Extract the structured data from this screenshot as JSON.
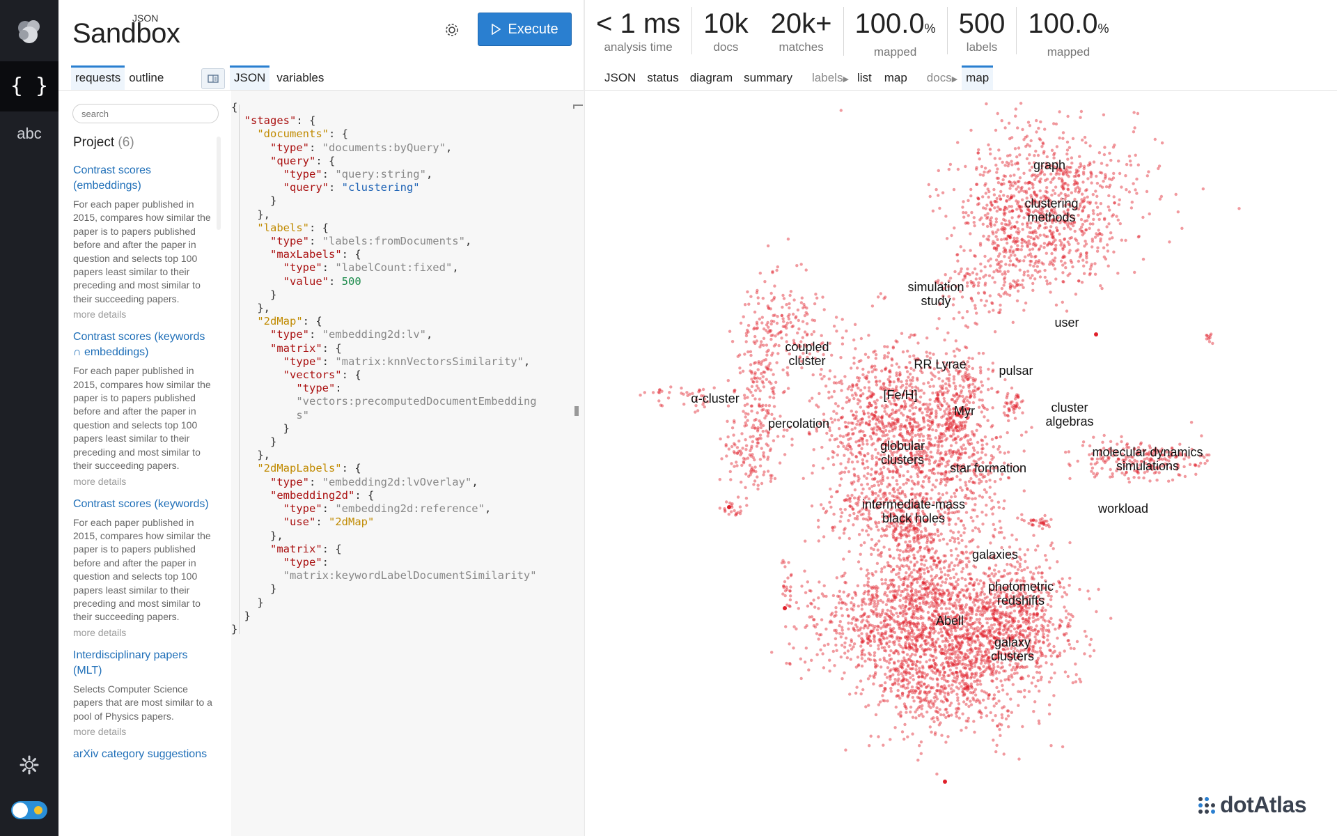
{
  "brand": {
    "json_label": "JSON",
    "name": "Sandbox"
  },
  "toolbar": {
    "execute_label": "Execute"
  },
  "stats": [
    {
      "value": "< 1 ms",
      "unit": "",
      "label": "analysis time"
    },
    {
      "value": "10k",
      "unit": "",
      "label": "docs"
    },
    {
      "value": "20k+",
      "unit": "",
      "label": "matches"
    },
    {
      "value": "100.0",
      "unit": "%",
      "label": "mapped"
    },
    {
      "value": "500",
      "unit": "",
      "label": "labels"
    },
    {
      "value": "100.0",
      "unit": "%",
      "label": "mapped"
    }
  ],
  "left_tabs": [
    "requests",
    "outline"
  ],
  "editor_tabs": [
    "JSON",
    "variables"
  ],
  "result_tabs": {
    "main": [
      "JSON",
      "status",
      "diagram",
      "summary"
    ],
    "labels_group": "labels",
    "labels_items": [
      "list",
      "map"
    ],
    "docs_group": "docs",
    "docs_items": [
      "map"
    ]
  },
  "rail": {
    "abc": "abc",
    "json": "{ }"
  },
  "search": {
    "placeholder": "search"
  },
  "project": {
    "title": "Project",
    "count": "(6)"
  },
  "requests": [
    {
      "title": "Contrast scores (embeddings)",
      "desc": "For each paper published in 2015, compares how similar the paper is to papers published before and after the paper in question and selects top 100 papers least similar to their preceding and most similar to their succeeding papers.",
      "more": "more details"
    },
    {
      "title": "Contrast scores (keywords ∩ embeddings)",
      "desc": "For each paper published in 2015, compares how similar the paper is to papers published before and after the paper in question and selects top 100 papers least similar to their preceding and most similar to their succeeding papers.",
      "more": "more details"
    },
    {
      "title": "Contrast scores (keywords)",
      "desc": "For each paper published in 2015, compares how similar the paper is to papers published before and after the paper in question and selects top 100 papers least similar to their preceding and most similar to their succeeding papers.",
      "more": "more details"
    },
    {
      "title": "Interdisciplinary papers (MLT)",
      "desc": "Selects Computer Science papers that are most similar to a pool of Physics papers.",
      "more": "more details"
    },
    {
      "title": "arXiv category suggestions",
      "desc": "",
      "more": ""
    }
  ],
  "editor": {
    "lines": [
      [
        [
          "p",
          "{"
        ]
      ],
      [
        [
          "p",
          "  "
        ],
        [
          "k",
          "\"stages\""
        ],
        [
          "p",
          ": {"
        ]
      ],
      [
        [
          "p",
          "    "
        ],
        [
          "o",
          "\"documents\""
        ],
        [
          "p",
          ": {"
        ]
      ],
      [
        [
          "p",
          "      "
        ],
        [
          "k",
          "\"type\""
        ],
        [
          "p",
          ": "
        ],
        [
          "s",
          "\"documents:byQuery\""
        ],
        [
          "p",
          ","
        ]
      ],
      [
        [
          "p",
          "      "
        ],
        [
          "k",
          "\"query\""
        ],
        [
          "p",
          ": {"
        ]
      ],
      [
        [
          "p",
          "        "
        ],
        [
          "k",
          "\"type\""
        ],
        [
          "p",
          ": "
        ],
        [
          "s",
          "\"query:string\""
        ],
        [
          "p",
          ","
        ]
      ],
      [
        [
          "p",
          "        "
        ],
        [
          "k",
          "\"query\""
        ],
        [
          "p",
          ": "
        ],
        [
          "v",
          "\"clustering\""
        ]
      ],
      [
        [
          "p",
          "      }"
        ]
      ],
      [
        [
          "p",
          "    },"
        ]
      ],
      [
        [
          "p",
          "    "
        ],
        [
          "o",
          "\"labels\""
        ],
        [
          "p",
          ": {"
        ]
      ],
      [
        [
          "p",
          "      "
        ],
        [
          "k",
          "\"type\""
        ],
        [
          "p",
          ": "
        ],
        [
          "s",
          "\"labels:fromDocuments\""
        ],
        [
          "p",
          ","
        ]
      ],
      [
        [
          "p",
          "      "
        ],
        [
          "k",
          "\"maxLabels\""
        ],
        [
          "p",
          ": {"
        ]
      ],
      [
        [
          "p",
          "        "
        ],
        [
          "k",
          "\"type\""
        ],
        [
          "p",
          ": "
        ],
        [
          "s",
          "\"labelCount:fixed\""
        ],
        [
          "p",
          ","
        ]
      ],
      [
        [
          "p",
          "        "
        ],
        [
          "k",
          "\"value\""
        ],
        [
          "p",
          ": "
        ],
        [
          "n",
          "500"
        ]
      ],
      [
        [
          "p",
          "      }"
        ]
      ],
      [
        [
          "p",
          "    },"
        ]
      ],
      [
        [
          "p",
          "    "
        ],
        [
          "o",
          "\"2dMap\""
        ],
        [
          "p",
          ": {"
        ]
      ],
      [
        [
          "p",
          "      "
        ],
        [
          "k",
          "\"type\""
        ],
        [
          "p",
          ": "
        ],
        [
          "s",
          "\"embedding2d:lv\""
        ],
        [
          "p",
          ","
        ]
      ],
      [
        [
          "p",
          "      "
        ],
        [
          "k",
          "\"matrix\""
        ],
        [
          "p",
          ": {"
        ]
      ],
      [
        [
          "p",
          "        "
        ],
        [
          "k",
          "\"type\""
        ],
        [
          "p",
          ": "
        ],
        [
          "s",
          "\"matrix:knnVectorsSimilarity\""
        ],
        [
          "p",
          ","
        ]
      ],
      [
        [
          "p",
          "        "
        ],
        [
          "k",
          "\"vectors\""
        ],
        [
          "p",
          ": {"
        ]
      ],
      [
        [
          "p",
          "          "
        ],
        [
          "k",
          "\"type\""
        ],
        [
          "p",
          ":"
        ]
      ],
      [
        [
          "p",
          "          "
        ],
        [
          "s",
          "\"vectors:precomputedDocumentEmbedding"
        ]
      ],
      [
        [
          "p",
          "          "
        ],
        [
          "s",
          "s\""
        ]
      ],
      [
        [
          "p",
          "        }"
        ]
      ],
      [
        [
          "p",
          "      }"
        ]
      ],
      [
        [
          "p",
          "    },"
        ]
      ],
      [
        [
          "p",
          "    "
        ],
        [
          "o",
          "\"2dMapLabels\""
        ],
        [
          "p",
          ": {"
        ]
      ],
      [
        [
          "p",
          "      "
        ],
        [
          "k",
          "\"type\""
        ],
        [
          "p",
          ": "
        ],
        [
          "s",
          "\"embedding2d:lvOverlay\""
        ],
        [
          "p",
          ","
        ]
      ],
      [
        [
          "p",
          "      "
        ],
        [
          "k",
          "\"embedding2d\""
        ],
        [
          "p",
          ": {"
        ]
      ],
      [
        [
          "p",
          "        "
        ],
        [
          "k",
          "\"type\""
        ],
        [
          "p",
          ": "
        ],
        [
          "s",
          "\"embedding2d:reference\""
        ],
        [
          "p",
          ","
        ]
      ],
      [
        [
          "p",
          "        "
        ],
        [
          "k",
          "\"use\""
        ],
        [
          "p",
          ": "
        ],
        [
          "o",
          "\"2dMap\""
        ]
      ],
      [
        [
          "p",
          "      },"
        ]
      ],
      [
        [
          "p",
          "      "
        ],
        [
          "k",
          "\"matrix\""
        ],
        [
          "p",
          ": {"
        ]
      ],
      [
        [
          "p",
          "        "
        ],
        [
          "k",
          "\"type\""
        ],
        [
          "p",
          ":"
        ]
      ],
      [
        [
          "p",
          "        "
        ],
        [
          "s",
          "\"matrix:keywordLabelDocumentSimilarity\""
        ]
      ],
      [
        [
          "p",
          "      }"
        ]
      ],
      [
        [
          "p",
          "    }"
        ]
      ],
      [
        [
          "p",
          "  }"
        ]
      ],
      [
        [
          "p",
          "}"
        ]
      ]
    ]
  },
  "map": {
    "point_color": "#e0202a",
    "labels": [
      {
        "text": "graph"
      },
      {
        "text": "clustering methods",
        "lines": [
          "clustering",
          "methods"
        ]
      },
      {
        "text": "simulation study",
        "lines": [
          "simulation",
          "study"
        ]
      },
      {
        "text": "user"
      },
      {
        "text": "coupled cluster",
        "lines": [
          "coupled",
          "cluster"
        ]
      },
      {
        "text": "RR Lyrae"
      },
      {
        "text": "pulsar"
      },
      {
        "text": "α-cluster"
      },
      {
        "text": "[Fe/H]"
      },
      {
        "text": "Myr"
      },
      {
        "text": "cluster algebras",
        "lines": [
          "cluster",
          "algebras"
        ]
      },
      {
        "text": "percolation"
      },
      {
        "text": "globular clusters",
        "lines": [
          "globular",
          "clusters"
        ]
      },
      {
        "text": "star formation"
      },
      {
        "text": "molecular dynamics simulations",
        "lines": [
          "molecular dynamics",
          "simulations"
        ]
      },
      {
        "text": "intermediate-mass black holes",
        "lines": [
          "intermediate-mass",
          "black holes"
        ]
      },
      {
        "text": "workload"
      },
      {
        "text": "galaxies"
      },
      {
        "text": "photometric redshifts",
        "lines": [
          "photometric",
          "redshifts"
        ]
      },
      {
        "text": "Abell"
      },
      {
        "text": "galaxy clusters",
        "lines": [
          "galaxy",
          "clusters"
        ]
      }
    ]
  },
  "watermark": {
    "text": "dotAtlas"
  }
}
